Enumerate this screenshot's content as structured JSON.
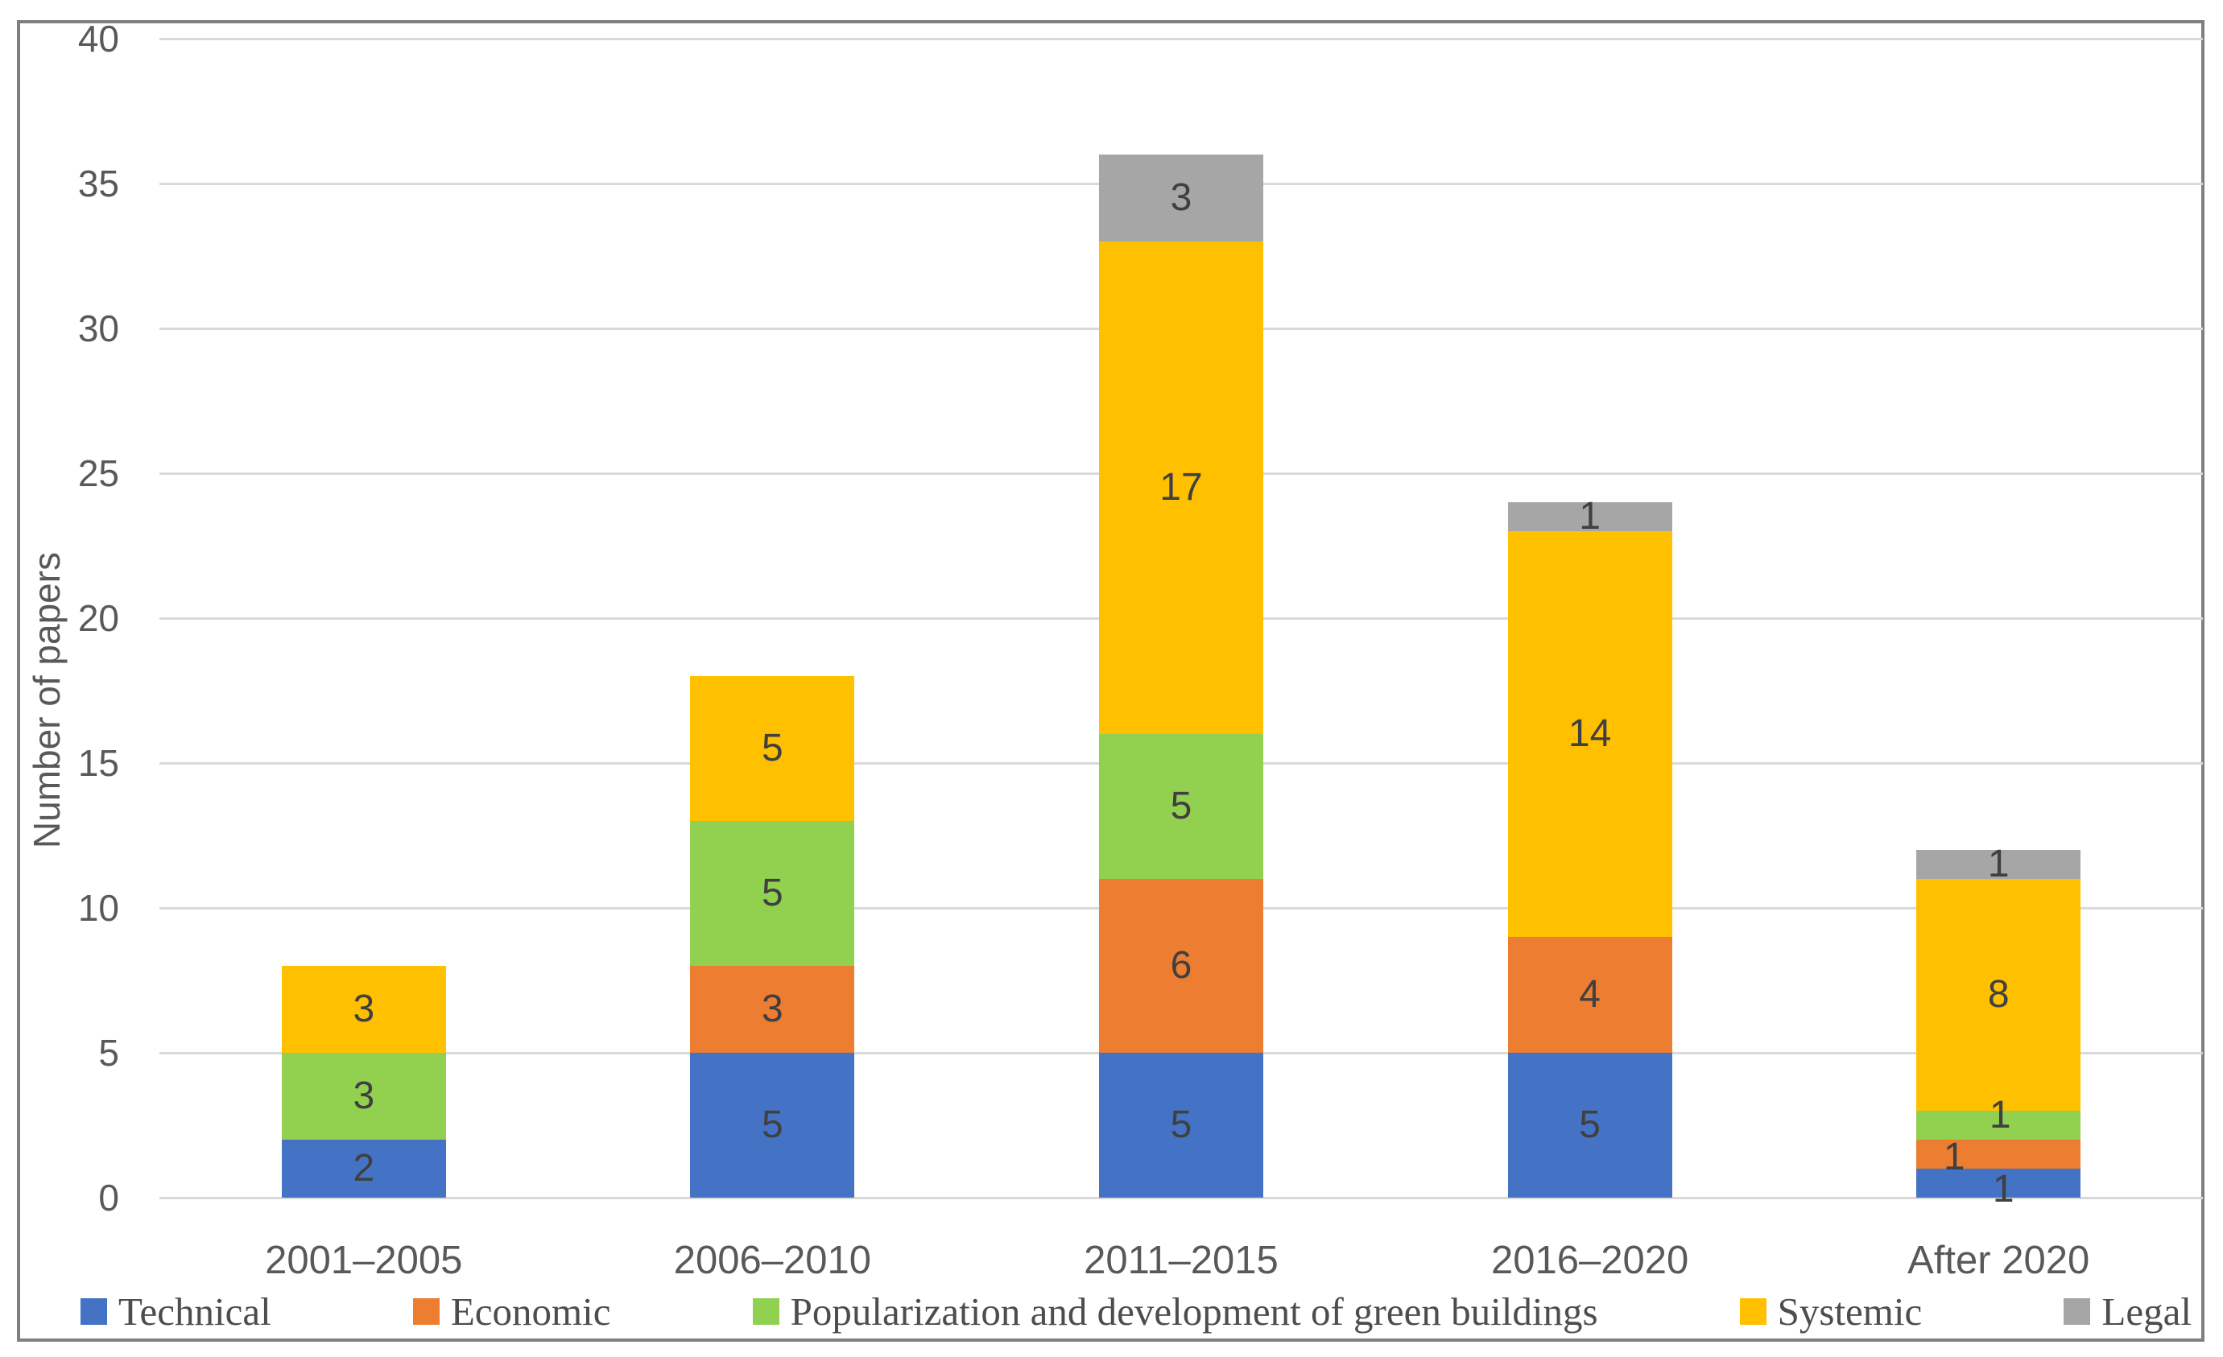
{
  "chart_data": {
    "type": "bar",
    "stacked": true,
    "title": "",
    "xlabel": "",
    "ylabel": "Number of papers",
    "ylim": [
      0,
      40
    ],
    "y_tick_step": 5,
    "y_tick_labels": [
      "0",
      "5",
      "10",
      "15",
      "20",
      "25",
      "30",
      "35",
      "40"
    ],
    "grid": true,
    "data_labels": true,
    "legend_position": "bottom",
    "categories": [
      "2001–2005",
      "2006–2010",
      "2011–2015",
      "2016–2020",
      "After 2020"
    ],
    "series": [
      {
        "name": "Technical",
        "color": "#4472c4",
        "values": [
          2,
          5,
          5,
          5,
          1
        ]
      },
      {
        "name": "Economic",
        "color": "#ed7d31",
        "values": [
          0,
          3,
          6,
          4,
          1
        ]
      },
      {
        "name": "Popularization and development of green buildings",
        "color": "#92d050",
        "values": [
          3,
          5,
          5,
          0,
          1
        ]
      },
      {
        "name": "Systemic",
        "color": "#ffc000",
        "values": [
          3,
          5,
          17,
          14,
          8
        ]
      },
      {
        "name": "Legal",
        "color": "#a6a6a6",
        "values": [
          0,
          0,
          3,
          1,
          1
        ]
      }
    ],
    "label_adjust": {
      "4": {
        "0": {
          "dx": 6,
          "dy": 8
        },
        "1": {
          "dx": -55,
          "dy": 4
        },
        "2": {
          "dx": 2,
          "dy": -12
        }
      }
    },
    "colors": {
      "gridline": "#d9d9d9",
      "frame_border": "#7f7f7f",
      "tick_label": "#595959",
      "data_label": "#404040",
      "legend_text": "#4d4d4d"
    }
  }
}
